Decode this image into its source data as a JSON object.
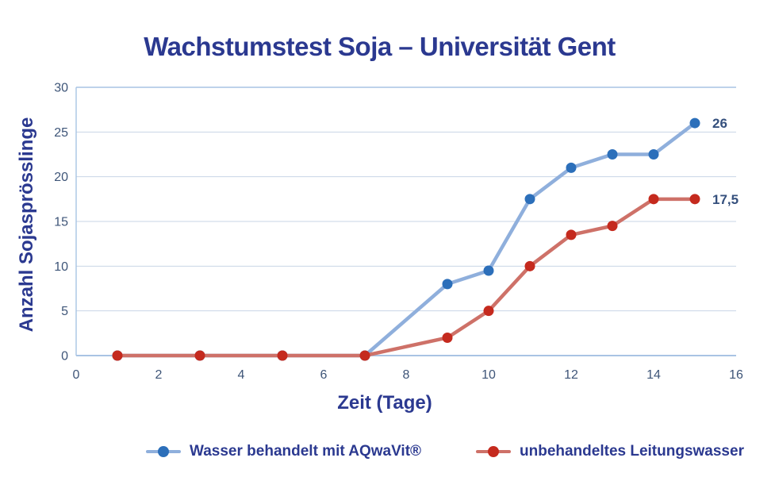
{
  "chart_data": {
    "type": "line",
    "title": "Wachstumstest Soja – Universität Gent",
    "xlabel": "Zeit (Tage)",
    "ylabel": "Anzahl Sojasprösslinge",
    "xlim": [
      0,
      16
    ],
    "ylim": [
      0,
      30
    ],
    "x_ticks": [
      0,
      2,
      4,
      6,
      8,
      10,
      12,
      14,
      16
    ],
    "y_ticks": [
      0,
      5,
      10,
      15,
      20,
      25,
      30
    ],
    "grid": "horizontal",
    "legend_position": "bottom",
    "x": [
      1,
      3,
      5,
      7,
      9,
      10,
      11,
      12,
      13,
      14,
      15
    ],
    "series": [
      {
        "id": "aqwavit",
        "name": "Wasser behandelt mit AQwaVit®",
        "values": [
          0,
          0,
          0,
          0,
          8,
          9.5,
          17.5,
          21,
          22.5,
          22.5,
          26
        ],
        "line_color": "#8FAFDC",
        "marker_color": "#2C6FBA",
        "end_label": "26"
      },
      {
        "id": "leitungswasser",
        "name": "unbehandeltes Leitungswasser",
        "values": [
          0,
          0,
          0,
          0,
          2,
          5,
          10,
          13.5,
          14.5,
          17.5,
          17.5
        ],
        "line_color": "#CE7168",
        "marker_color": "#C52A1E",
        "end_label": "17,5"
      }
    ]
  },
  "colors": {
    "background": "#FFFFFF",
    "grid": "#C8D4E6",
    "axis": "#A9C4E4",
    "tick_text": "#3E5578",
    "label_text": "#2B3990",
    "end_label_text": "#35507D"
  }
}
